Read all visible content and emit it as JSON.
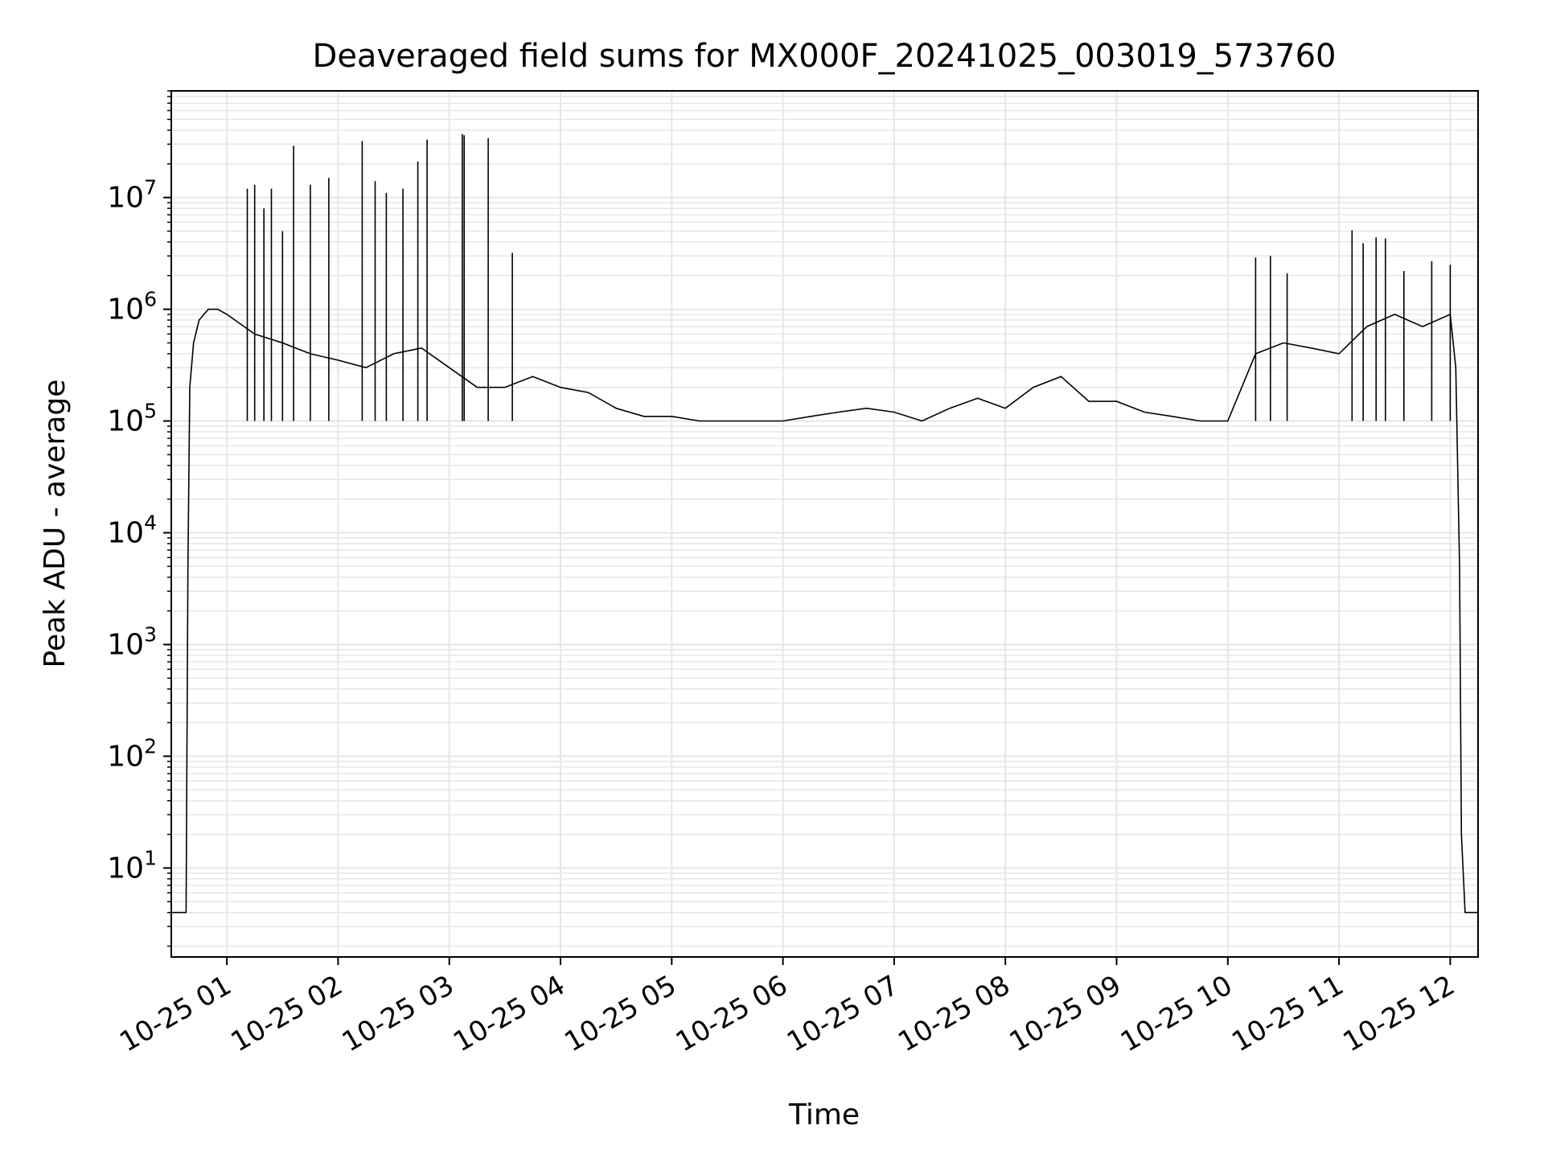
{
  "chart_data": {
    "type": "line",
    "title": "Deaveraged field sums for MX000F_20241025_003019_573760",
    "xlabel": "Time",
    "ylabel": "Peak ADU - average",
    "yscale": "log",
    "ylim": [
      1.6,
      90000000
    ],
    "xlim": [
      "2024-10-25 00:30",
      "2024-10-25 12:15"
    ],
    "grid": true,
    "x_tick_labels": [
      "10-25 01",
      "10-25 02",
      "10-25 03",
      "10-25 04",
      "10-25 05",
      "10-25 06",
      "10-25 07",
      "10-25 08",
      "10-25 09",
      "10-25 10",
      "10-25 11",
      "10-25 12"
    ],
    "x_tick_values": [
      "2024-10-25 01:00",
      "2024-10-25 02:00",
      "2024-10-25 03:00",
      "2024-10-25 04:00",
      "2024-10-25 05:00",
      "2024-10-25 06:00",
      "2024-10-25 07:00",
      "2024-10-25 08:00",
      "2024-10-25 09:00",
      "2024-10-25 10:00",
      "2024-10-25 11:00",
      "2024-10-25 12:00"
    ],
    "y_tick_labels": [
      {
        "base": "10",
        "exp": "1"
      },
      {
        "base": "10",
        "exp": "2"
      },
      {
        "base": "10",
        "exp": "3"
      },
      {
        "base": "10",
        "exp": "4"
      },
      {
        "base": "10",
        "exp": "5"
      },
      {
        "base": "10",
        "exp": "6"
      },
      {
        "base": "10",
        "exp": "7"
      }
    ],
    "y_tick_values": [
      10,
      100,
      1000,
      10000,
      100000,
      1000000,
      10000000
    ],
    "line_color": "#000000",
    "grid_color": "#e6e6e6",
    "series": [
      {
        "color": "#000000",
        "x": [
          "2024-10-25 00:30",
          "2024-10-25 00:38",
          "2024-10-25 00:39",
          "2024-10-25 00:40",
          "2024-10-25 00:42",
          "2024-10-25 00:45",
          "2024-10-25 00:50",
          "2024-10-25 00:55",
          "2024-10-25 01:00",
          "2024-10-25 01:15",
          "2024-10-25 01:30",
          "2024-10-25 01:45",
          "2024-10-25 02:00",
          "2024-10-25 02:15",
          "2024-10-25 02:30",
          "2024-10-25 02:45",
          "2024-10-25 03:00",
          "2024-10-25 03:15",
          "2024-10-25 03:30",
          "2024-10-25 03:45",
          "2024-10-25 04:00",
          "2024-10-25 04:15",
          "2024-10-25 04:30",
          "2024-10-25 04:45",
          "2024-10-25 05:00",
          "2024-10-25 05:15",
          "2024-10-25 05:30",
          "2024-10-25 05:45",
          "2024-10-25 06:00",
          "2024-10-25 06:15",
          "2024-10-25 06:30",
          "2024-10-25 06:45",
          "2024-10-25 07:00",
          "2024-10-25 07:15",
          "2024-10-25 07:30",
          "2024-10-25 07:45",
          "2024-10-25 08:00",
          "2024-10-25 08:15",
          "2024-10-25 08:30",
          "2024-10-25 08:45",
          "2024-10-25 09:00",
          "2024-10-25 09:15",
          "2024-10-25 09:30",
          "2024-10-25 09:45",
          "2024-10-25 10:00",
          "2024-10-25 10:15",
          "2024-10-25 10:30",
          "2024-10-25 10:45",
          "2024-10-25 11:00",
          "2024-10-25 11:15",
          "2024-10-25 11:30",
          "2024-10-25 11:45",
          "2024-10-25 12:00",
          "2024-10-25 12:03",
          "2024-10-25 12:05",
          "2024-10-25 12:06",
          "2024-10-25 12:08",
          "2024-10-25 12:15"
        ],
        "y": [
          4,
          4,
          5000,
          200000,
          500000,
          800000,
          1000000,
          1000000,
          900000,
          600000,
          500000,
          400000,
          350000,
          300000,
          400000,
          450000,
          300000,
          200000,
          200000,
          250000,
          200000,
          180000,
          130000,
          110000,
          110000,
          100000,
          100000,
          100000,
          100000,
          110000,
          120000,
          130000,
          120000,
          100000,
          130000,
          160000,
          130000,
          200000,
          250000,
          150000,
          150000,
          120000,
          110000,
          100000,
          100000,
          400000,
          500000,
          450000,
          400000,
          700000,
          900000,
          700000,
          900000,
          300000,
          5000,
          20,
          4,
          4
        ]
      },
      {
        "name": "",
        "type": "spikes",
        "color": "#000000",
        "x": [
          "2024-10-25 01:11",
          "2024-10-25 01:15",
          "2024-10-25 01:20",
          "2024-10-25 01:24",
          "2024-10-25 01:30",
          "2024-10-25 01:36",
          "2024-10-25 01:45",
          "2024-10-25 01:55",
          "2024-10-25 02:13",
          "2024-10-25 02:20",
          "2024-10-25 02:26",
          "2024-10-25 02:35",
          "2024-10-25 02:43",
          "2024-10-25 02:48",
          "2024-10-25 03:07",
          "2024-10-25 03:08",
          "2024-10-25 03:21",
          "2024-10-25 03:34",
          "2024-10-25 10:15",
          "2024-10-25 10:23",
          "2024-10-25 10:32",
          "2024-10-25 11:07",
          "2024-10-25 11:13",
          "2024-10-25 11:20",
          "2024-10-25 11:25",
          "2024-10-25 11:35",
          "2024-10-25 11:50",
          "2024-10-25 12:00"
        ],
        "y": [
          12000000,
          13000000,
          8000000,
          12000000,
          5000000,
          29000000,
          13000000,
          15000000,
          32000000,
          14000000,
          11000000,
          12000000,
          21000000,
          33000000,
          37000000,
          36000000,
          34000000,
          3200000,
          2900000,
          3000000,
          2100000,
          5100000,
          3900000,
          4400000,
          4300000,
          2200000,
          2700000,
          2500000
        ]
      }
    ]
  }
}
